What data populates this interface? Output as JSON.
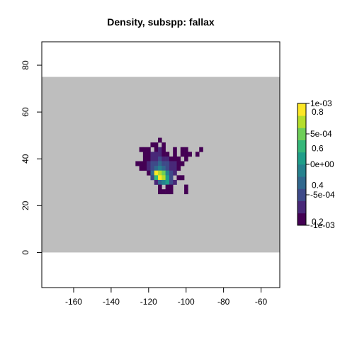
{
  "chart_data": {
    "type": "heatmap",
    "title": "Density, subspp: fallax",
    "xlabel": "",
    "ylabel": "",
    "xlim": [
      -177,
      -50
    ],
    "ylim": [
      -15,
      90
    ],
    "x_ticks": [
      "-160",
      "-140",
      "-120",
      "-100",
      "-80",
      "-60"
    ],
    "y_ticks": [
      "0",
      "20",
      "40",
      "60",
      "80"
    ],
    "background_band": {
      "x": [
        -177,
        -50
      ],
      "y": [
        0,
        75
      ],
      "color": "#bebebe"
    },
    "grid_cell_deg": 2,
    "cells": [
      [
        -114,
        48,
        0.05
      ],
      [
        -118,
        46,
        0.05
      ],
      [
        -116,
        46,
        0.05
      ],
      [
        -112,
        46,
        0.05
      ],
      [
        -124,
        44,
        0.05
      ],
      [
        -122,
        44,
        0.05
      ],
      [
        -120,
        44,
        0.05
      ],
      [
        -116,
        44,
        0.08
      ],
      [
        -114,
        44,
        0.1
      ],
      [
        -112,
        44,
        0.05
      ],
      [
        -106,
        44,
        0.05
      ],
      [
        -102,
        44,
        0.05
      ],
      [
        -100,
        44,
        0.05
      ],
      [
        -92,
        44,
        0.05
      ],
      [
        -122,
        42,
        0.05
      ],
      [
        -120,
        42,
        0.08
      ],
      [
        -118,
        42,
        0.1
      ],
      [
        -116,
        42,
        0.15
      ],
      [
        -114,
        42,
        0.12
      ],
      [
        -112,
        42,
        0.08
      ],
      [
        -110,
        42,
        0.05
      ],
      [
        -106,
        42,
        0.05
      ],
      [
        -102,
        42,
        0.05
      ],
      [
        -100,
        42,
        0.05
      ],
      [
        -98,
        42,
        0.05
      ],
      [
        -94,
        42,
        0.05
      ],
      [
        -122,
        40,
        0.05
      ],
      [
        -120,
        40,
        0.08
      ],
      [
        -118,
        40,
        0.12
      ],
      [
        -116,
        40,
        0.15
      ],
      [
        -114,
        40,
        0.2
      ],
      [
        -112,
        40,
        0.15
      ],
      [
        -110,
        40,
        0.1
      ],
      [
        -108,
        40,
        0.08
      ],
      [
        -106,
        40,
        0.05
      ],
      [
        -104,
        40,
        0.05
      ],
      [
        -100,
        40,
        0.05
      ],
      [
        -126,
        38,
        0.05
      ],
      [
        -124,
        38,
        0.05
      ],
      [
        -122,
        38,
        0.08
      ],
      [
        -120,
        38,
        0.15
      ],
      [
        -118,
        38,
        0.2
      ],
      [
        -116,
        38,
        0.25
      ],
      [
        -114,
        38,
        0.3
      ],
      [
        -112,
        38,
        0.25
      ],
      [
        -110,
        38,
        0.2
      ],
      [
        -108,
        38,
        0.15
      ],
      [
        -106,
        38,
        0.1
      ],
      [
        -104,
        38,
        0.08
      ],
      [
        -102,
        38,
        0.05
      ],
      [
        -124,
        36,
        0.05
      ],
      [
        -122,
        36,
        0.05
      ],
      [
        -120,
        36,
        0.1
      ],
      [
        -118,
        36,
        0.2
      ],
      [
        -116,
        36,
        0.35
      ],
      [
        -114,
        36,
        0.4
      ],
      [
        -112,
        36,
        0.35
      ],
      [
        -110,
        36,
        0.25
      ],
      [
        -108,
        36,
        0.15
      ],
      [
        -106,
        36,
        0.1
      ],
      [
        -104,
        36,
        0.05
      ],
      [
        -120,
        34,
        0.08
      ],
      [
        -118,
        34,
        0.3
      ],
      [
        -116,
        34,
        0.9
      ],
      [
        -114,
        34,
        0.85
      ],
      [
        -112,
        34,
        0.7
      ],
      [
        -110,
        34,
        0.4
      ],
      [
        -108,
        34,
        0.2
      ],
      [
        -106,
        34,
        0.1
      ],
      [
        -118,
        32,
        0.25
      ],
      [
        -116,
        32,
        0.6
      ],
      [
        -114,
        32,
        0.95
      ],
      [
        -112,
        32,
        0.8
      ],
      [
        -110,
        32,
        0.5
      ],
      [
        -108,
        32,
        0.2
      ],
      [
        -104,
        32,
        0.05
      ],
      [
        -102,
        32,
        0.05
      ],
      [
        -116,
        30,
        0.15
      ],
      [
        -114,
        30,
        0.3
      ],
      [
        -112,
        30,
        0.45
      ],
      [
        -110,
        30,
        0.55
      ],
      [
        -108,
        30,
        0.25
      ],
      [
        -106,
        30,
        0.1
      ],
      [
        -114,
        28,
        0.05
      ],
      [
        -110,
        28,
        0.05
      ],
      [
        -108,
        28,
        0.05
      ],
      [
        -100,
        28,
        0.05
      ],
      [
        -114,
        26,
        0.05
      ],
      [
        -112,
        26,
        0.05
      ],
      [
        -110,
        26,
        0.05
      ],
      [
        -108,
        26,
        0.05
      ],
      [
        -100,
        26,
        0.05
      ]
    ],
    "colorscale": [
      "#440154",
      "#482878",
      "#3e4a89",
      "#31688e",
      "#26828e",
      "#1f9e89",
      "#35b779",
      "#6ece58",
      "#b5de2b",
      "#fde725"
    ],
    "legend": {
      "placement": "right",
      "labels_a": [
        "1e-03",
        "5e-04",
        "0e+00",
        "-5e-04",
        "-1e-03"
      ],
      "labels_a_vals": [
        0.001,
        0.0005,
        0,
        -0.0005,
        -0.001
      ],
      "labels_b": [
        "0.8",
        "0.6",
        "0.4",
        "0.2"
      ],
      "labels_b_vals": [
        0.8,
        0.6,
        0.4,
        0.2
      ]
    }
  }
}
